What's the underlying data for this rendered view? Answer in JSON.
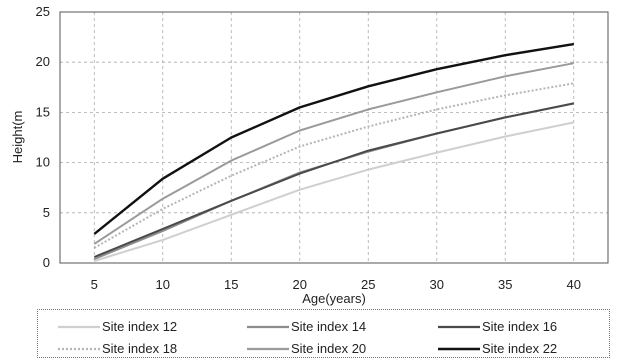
{
  "chart_data": {
    "type": "line",
    "title": "",
    "xlabel": "Age(years)",
    "ylabel": "Height(m",
    "x": [
      5,
      10,
      15,
      20,
      25,
      30,
      35,
      40
    ],
    "xticks": [
      "5",
      "10",
      "15",
      "20",
      "25",
      "30",
      "35",
      "40"
    ],
    "yticks": [
      "0",
      "5",
      "10",
      "15",
      "20",
      "25"
    ],
    "xlim": [
      2.5,
      42.5
    ],
    "ylim": [
      0,
      25
    ],
    "grid": true,
    "legend_position": "bottom",
    "series": [
      {
        "name": "Site index 12",
        "color": "#cfcfcf",
        "dash": "",
        "values": [
          0.2,
          2.3,
          4.8,
          7.3,
          9.3,
          11.0,
          12.6,
          14.0
        ]
      },
      {
        "name": "Site index 14",
        "color": "#8c8c8c",
        "dash": "",
        "values": [
          0.4,
          3.2,
          6.2,
          9.0,
          11.1,
          12.9,
          14.5,
          15.9
        ]
      },
      {
        "name": "Site index 16",
        "color": "#4a4a4a",
        "dash": "",
        "values": [
          0.6,
          3.4,
          6.2,
          8.9,
          11.2,
          12.9,
          14.5,
          15.9
        ]
      },
      {
        "name": "Site index 18",
        "color": "#b5b5b5",
        "dash": "2,2",
        "values": [
          1.5,
          5.4,
          8.7,
          11.6,
          13.6,
          15.3,
          16.7,
          17.9
        ]
      },
      {
        "name": "Site index 20",
        "color": "#9a9a9a",
        "dash": "",
        "values": [
          1.9,
          6.4,
          10.2,
          13.2,
          15.3,
          17.0,
          18.6,
          19.9
        ]
      },
      {
        "name": "Site index 22",
        "color": "#111111",
        "dash": "",
        "values": [
          2.9,
          8.4,
          12.5,
          15.5,
          17.6,
          19.3,
          20.7,
          21.8
        ]
      }
    ]
  }
}
